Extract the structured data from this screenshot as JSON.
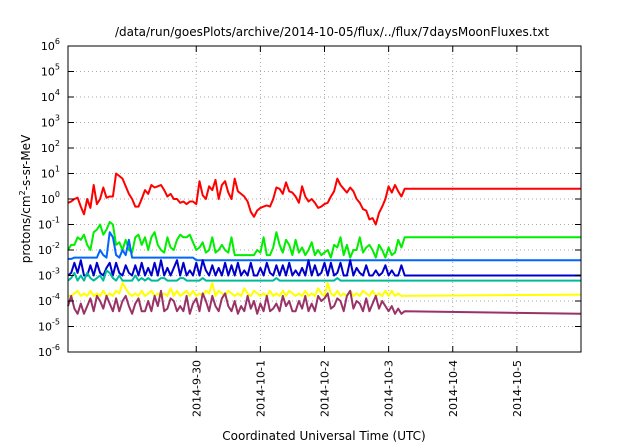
{
  "chart_data": {
    "type": "line",
    "title": "/data/run/goesPlots/archive/2014-10-05/flux/../flux/7daysMoonFluxes.txt",
    "xlabel": "Coordinated Universal Time (UTC)",
    "ylabel": "protons/cm2-s-sr-MeV",
    "ylabel_parts": {
      "base": "protons/cm",
      "sup": "2",
      "rest": "-s-sr-MeV"
    },
    "yscale": "log",
    "ylim_exp": [
      -6,
      6
    ],
    "y_ticks": [
      {
        "exp": -6
      },
      {
        "exp": -5
      },
      {
        "exp": -4
      },
      {
        "exp": -3
      },
      {
        "exp": -2
      },
      {
        "exp": -1
      },
      {
        "exp": 0
      },
      {
        "exp": 1
      },
      {
        "exp": 2
      },
      {
        "exp": 3
      },
      {
        "exp": 4
      },
      {
        "exp": 5
      },
      {
        "exp": 6
      }
    ],
    "y_tick_base": "10",
    "xlim": [
      "2014-09-28",
      "2014-10-06"
    ],
    "x_ticks": [
      "2014-9-30",
      "2014-10-1",
      "2014-10-2",
      "2014-10-3",
      "2014-10-4",
      "2014-10-5"
    ],
    "grid": true,
    "series": [
      {
        "color": "#ff0000",
        "x_start": 0,
        "x_step": 0.05,
        "log_values": [
          -0.15,
          -0.1,
          0.0,
          0.05,
          -0.3,
          -0.6,
          0.0,
          -0.35,
          0.55,
          -0.2,
          0.0,
          0.45,
          0.05,
          0.1,
          0.1,
          1.0,
          0.9,
          0.8,
          0.5,
          0.2,
          0.0,
          -0.3,
          -0.3,
          0.0,
          0.35,
          0.2,
          0.55,
          0.45,
          0.5,
          0.55,
          0.35,
          0.1,
          0.2,
          0.0,
          0.0,
          -0.15,
          -0.1,
          -0.2,
          -0.1,
          -0.1,
          -0.2,
          0.7,
          0.15,
          0.0,
          0.5,
          0.35,
          0.75,
          0.0,
          0.55,
          0.7,
          0.25,
          0.0,
          0.8,
          0.3,
          0.2,
          0.1,
          -0.1,
          -0.5,
          -0.7,
          -0.45,
          -0.35,
          -0.3,
          -0.25,
          -0.3,
          0.0,
          0.45,
          0.4,
          0.2,
          0.65,
          0.3,
          0.25,
          0.1,
          -0.15,
          0.5,
          0.1,
          -0.1,
          0.0,
          -0.15,
          -0.35,
          -0.3,
          -0.2,
          -0.15,
          0.1,
          0.3,
          0.8,
          0.55,
          0.4,
          0.25,
          0.45,
          0.3,
          0.0,
          -0.15,
          -0.4,
          -0.45,
          -0.8,
          -0.75,
          -1.0,
          -0.55,
          -0.3,
          0.0,
          0.5,
          0.25,
          0.55,
          0.3,
          0.1,
          0.4
        ],
        "tail_log_value": 0.4
      },
      {
        "color": "#00ee00",
        "x_start": 0,
        "x_step": 0.05,
        "log_values": [
          -2.0,
          -1.8,
          -1.8,
          -1.5,
          -1.6,
          -1.4,
          -1.8,
          -2.0,
          -1.3,
          -1.2,
          -1.0,
          -1.4,
          -1.2,
          -0.9,
          -1.0,
          -1.8,
          -1.7,
          -2.0,
          -1.6,
          -2.0,
          -2.1,
          -1.5,
          -1.4,
          -1.8,
          -1.5,
          -2.0,
          -1.5,
          -1.3,
          -1.8,
          -2.0,
          -2.1,
          -1.5,
          -1.9,
          -2.0,
          -1.6,
          -1.4,
          -1.5,
          -1.5,
          -1.4,
          -1.7,
          -2.0,
          -1.9,
          -1.7,
          -2.1,
          -2.0,
          -1.5,
          -2.1,
          -2.0,
          -1.8,
          -2.0,
          -2.1,
          -1.5,
          -2.2,
          -2.2,
          -2.2,
          -2.2,
          -2.2,
          -2.2,
          -2.2,
          -2.0,
          -2.1,
          -1.5,
          -2.2,
          -2.2,
          -1.9,
          -1.3,
          -1.8,
          -2.1,
          -1.6,
          -1.8,
          -2.2,
          -1.6,
          -2.1,
          -1.9,
          -2.2,
          -2.0,
          -1.7,
          -2.2,
          -2.0,
          -2.2,
          -2.1,
          -2.0,
          -2.3,
          -1.8,
          -1.9,
          -1.5,
          -2.2,
          -1.8,
          -2.3,
          -2.0,
          -2.0,
          -1.5,
          -2.1,
          -1.9,
          -1.8,
          -2.0,
          -2.3,
          -1.8,
          -2.0,
          -2.3,
          -1.9,
          -2.2,
          -2.1,
          -1.6,
          -1.9,
          -1.5
        ],
        "tail_log_value": -1.5
      },
      {
        "color": "#0066ff",
        "x_start": 0,
        "x_step": 0.05,
        "log_values": [
          -2.35,
          -2.35,
          -2.3,
          -2.3,
          -2.3,
          -2.3,
          -2.3,
          -2.3,
          -2.3,
          -2.3,
          -2.0,
          -2.2,
          -2.3,
          -1.3,
          -1.5,
          -2.2,
          -2.3,
          -2.0,
          -2.2,
          -1.6,
          -2.3,
          -2.3,
          -2.3,
          -2.3,
          -2.3,
          -2.3,
          -2.3,
          -2.3,
          -2.3,
          -2.3,
          -2.3,
          -2.3,
          -2.3,
          -2.3,
          -2.3,
          -2.3,
          -2.3,
          -2.3,
          -2.3,
          -2.3,
          -2.4,
          -2.4,
          -2.4,
          -2.4,
          -2.4,
          -2.4,
          -2.4,
          -2.4,
          -2.4,
          -2.4,
          -2.4,
          -2.4,
          -2.4,
          -2.4,
          -2.4,
          -2.4,
          -2.4,
          -2.4,
          -2.4,
          -2.4,
          -2.4,
          -2.4,
          -2.4,
          -2.4,
          -2.4,
          -2.4,
          -2.4,
          -2.4,
          -2.4,
          -2.4,
          -2.4,
          -2.4,
          -2.4,
          -2.4,
          -2.4,
          -2.4,
          -2.4,
          -2.4,
          -2.4,
          -2.4,
          -2.4,
          -2.4,
          -2.4,
          -2.4,
          -2.4,
          -2.4,
          -2.4,
          -2.4,
          -2.4,
          -2.4,
          -2.4,
          -2.4,
          -2.4,
          -2.4,
          -2.4,
          -2.4,
          -2.4,
          -2.4,
          -2.4,
          -2.4,
          -2.4,
          -2.4,
          -2.4,
          -2.4,
          -2.4,
          -2.4
        ],
        "tail_log_value": -2.4
      },
      {
        "color": "#0000cc",
        "x_start": 0,
        "x_step": 0.05,
        "log_values": [
          -3.0,
          -2.9,
          -2.5,
          -2.9,
          -2.4,
          -3.0,
          -3.0,
          -2.6,
          -3.0,
          -2.5,
          -2.9,
          -3.0,
          -2.7,
          -2.5,
          -3.0,
          -2.5,
          -2.9,
          -3.0,
          -2.6,
          -2.9,
          -3.0,
          -2.6,
          -3.0,
          -2.5,
          -3.0,
          -2.7,
          -3.0,
          -2.5,
          -3.0,
          -2.4,
          -3.0,
          -2.7,
          -3.0,
          -2.7,
          -2.4,
          -3.0,
          -2.5,
          -3.0,
          -2.8,
          -3.0,
          -2.5,
          -3.0,
          -2.4,
          -2.8,
          -3.0,
          -2.6,
          -3.0,
          -2.7,
          -3.0,
          -2.5,
          -3.0,
          -2.6,
          -3.0,
          -2.5,
          -3.0,
          -2.8,
          -3.0,
          -2.5,
          -3.0,
          -3.0,
          -2.7,
          -3.0,
          -2.5,
          -2.9,
          -3.0,
          -2.6,
          -3.0,
          -2.6,
          -3.0,
          -2.5,
          -3.0,
          -2.8,
          -3.0,
          -2.7,
          -3.0,
          -2.4,
          -3.0,
          -2.6,
          -3.0,
          -2.9,
          -2.5,
          -3.0,
          -2.5,
          -3.0,
          -2.9,
          -2.5,
          -3.0,
          -3.0,
          -2.4,
          -3.0,
          -2.7,
          -2.9,
          -3.0,
          -2.6,
          -3.0,
          -3.0,
          -2.8,
          -3.0,
          -2.9,
          -2.6,
          -3.0,
          -2.8,
          -3.0,
          -3.0,
          -2.6,
          -3.0
        ],
        "tail_log_value": -3.0
      },
      {
        "color": "#00bb99",
        "x_start": 0,
        "x_step": 0.05,
        "log_values": [
          -3.2,
          -3.1,
          -2.9,
          -3.2,
          -3.0,
          -3.2,
          -2.9,
          -3.1,
          -3.2,
          -3.1,
          -3.0,
          -3.2,
          -2.8,
          -2.9,
          -3.1,
          -3.2,
          -3.0,
          -3.2,
          -3.2,
          -3.2,
          -3.2,
          -3.0,
          -3.2,
          -3.1,
          -3.2,
          -3.1,
          -3.2,
          -3.2,
          -3.2,
          -3.1,
          -3.1,
          -3.2,
          -3.2,
          -3.2,
          -3.2,
          -3.1,
          -3.1,
          -3.2,
          -3.2,
          -3.2,
          -3.2,
          -3.2,
          -3.1,
          -3.2,
          -3.2,
          -3.2,
          -3.2,
          -3.2,
          -3.2,
          -3.2,
          -3.2,
          -3.2,
          -3.2,
          -3.2,
          -3.2,
          -3.2,
          -3.2,
          -3.2,
          -3.2,
          -3.2,
          -3.2,
          -3.2,
          -3.2,
          -3.2,
          -3.2,
          -3.1,
          -3.2,
          -3.2,
          -3.2,
          -3.2,
          -3.2,
          -3.2,
          -3.2,
          -3.2,
          -3.2,
          -3.2,
          -3.2,
          -3.2,
          -3.2,
          -3.2,
          -3.2,
          -3.2,
          -3.2,
          -3.2,
          -3.1,
          -3.2,
          -3.2,
          -3.2,
          -3.2,
          -3.2,
          -3.2,
          -3.2,
          -3.2,
          -3.2,
          -3.2,
          -3.2,
          -3.2,
          -3.2,
          -3.2,
          -3.2,
          -3.2,
          -3.2,
          -3.2,
          -3.2,
          -3.2,
          -3.2
        ],
        "tail_log_value": -3.2
      },
      {
        "color": "#ffff00",
        "x_start": 0,
        "x_step": 0.05,
        "log_values": [
          -3.8,
          -3.8,
          -3.7,
          -3.6,
          -3.8,
          -3.7,
          -3.8,
          -3.6,
          -3.8,
          -3.7,
          -3.8,
          -3.6,
          -3.8,
          -3.7,
          -3.8,
          -3.6,
          -3.7,
          -3.3,
          -3.5,
          -3.7,
          -3.8,
          -3.7,
          -3.8,
          -3.6,
          -3.8,
          -3.7,
          -3.6,
          -3.8,
          -3.7,
          -3.8,
          -3.7,
          -3.8,
          -3.5,
          -3.8,
          -3.6,
          -3.8,
          -3.7,
          -3.6,
          -3.8,
          -3.6,
          -3.8,
          -3.7,
          -3.8,
          -3.6,
          -3.7,
          -3.3,
          -3.8,
          -3.6,
          -3.7,
          -3.8,
          -3.6,
          -3.7,
          -3.8,
          -3.7,
          -3.8,
          -3.5,
          -3.7,
          -3.8,
          -3.6,
          -3.7,
          -3.8,
          -3.7,
          -3.8,
          -3.6,
          -3.8,
          -3.7,
          -3.8,
          -3.6,
          -3.8,
          -3.6,
          -3.7,
          -3.8,
          -3.7,
          -3.8,
          -3.6,
          -3.8,
          -3.7,
          -3.8,
          -3.5,
          -3.7,
          -3.8,
          -3.3,
          -3.7,
          -3.8,
          -3.6,
          -3.8,
          -3.7,
          -3.8,
          -3.6,
          -3.8,
          -3.7,
          -3.8,
          -3.6,
          -3.7,
          -3.8,
          -3.6,
          -3.8,
          -3.7,
          -3.8,
          -3.6,
          -3.8,
          -3.6,
          -3.8,
          -3.7,
          -3.8,
          -3.8
        ],
        "tail_log_value": -3.75
      },
      {
        "color": "#993366",
        "x_start": 0,
        "x_step": 0.05,
        "log_values": [
          -4.2,
          -3.8,
          -4.3,
          -4.5,
          -4.1,
          -4.5,
          -4.2,
          -3.9,
          -4.4,
          -3.8,
          -4.0,
          -4.3,
          -3.8,
          -4.1,
          -4.4,
          -3.9,
          -4.4,
          -4.0,
          -3.8,
          -4.2,
          -4.5,
          -4.1,
          -3.9,
          -4.4,
          -4.4,
          -4.0,
          -4.4,
          -3.8,
          -4.2,
          -3.6,
          -4.4,
          -4.3,
          -3.9,
          -4.0,
          -4.4,
          -4.2,
          -4.4,
          -3.8,
          -4.5,
          -4.1,
          -3.9,
          -4.4,
          -3.7,
          -4.0,
          -4.4,
          -3.8,
          -4.2,
          -4.4,
          -3.9,
          -3.7,
          -4.2,
          -4.4,
          -4.0,
          -4.5,
          -4.2,
          -4.4,
          -3.8,
          -4.3,
          -4.0,
          -4.5,
          -4.1,
          -4.4,
          -3.8,
          -4.4,
          -4.3,
          -4.1,
          -4.4,
          -3.8,
          -4.2,
          -4.0,
          -4.4,
          -4.4,
          -4.0,
          -4.3,
          -3.8,
          -4.4,
          -4.1,
          -4.4,
          -3.8,
          -4.0,
          -3.9,
          -3.7,
          -4.3,
          -4.2,
          -3.9,
          -4.0,
          -4.4,
          -3.8,
          -3.6,
          -4.3,
          -4.0,
          -4.1,
          -4.4,
          -3.9,
          -4.4,
          -4.1,
          -3.8,
          -4.3,
          -4.0,
          -4.2,
          -4.4,
          -4.2,
          -4.5,
          -4.3,
          -4.5,
          -4.4
        ],
        "tail_log_value": -4.5
      }
    ]
  }
}
